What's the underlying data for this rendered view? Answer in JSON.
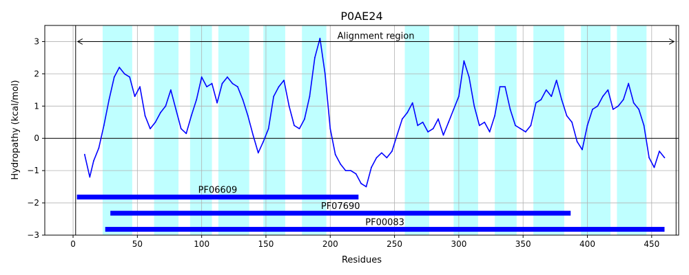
{
  "chart_data": {
    "type": "line",
    "title": "P0AE24",
    "xlabel": "Residues",
    "ylabel": "Hydropathy (kcal/mol)",
    "xlim": [
      -22,
      471
    ],
    "ylim": [
      -3,
      3.5
    ],
    "xticks": [
      0,
      50,
      100,
      150,
      200,
      250,
      300,
      350,
      400,
      450
    ],
    "yticks": [
      -3,
      -2,
      -1,
      0,
      1,
      2,
      3
    ],
    "grid": true,
    "colors": {
      "line": "#0000ff",
      "tm_band": "#00ffff",
      "domain_bar": "#0000ff",
      "grid": "#b0b0b0"
    },
    "tm_segments": [
      [
        23,
        46
      ],
      [
        63,
        82
      ],
      [
        91,
        108
      ],
      [
        113,
        137
      ],
      [
        148,
        165
      ],
      [
        178,
        197
      ],
      [
        258,
        277
      ],
      [
        296,
        315
      ],
      [
        328,
        345
      ],
      [
        358,
        382
      ],
      [
        395,
        418
      ],
      [
        423,
        446
      ]
    ],
    "alignment_region": {
      "label": "Alignment region",
      "start": 2,
      "end": 469,
      "y": 3.0
    },
    "domains": [
      {
        "name": "PF06609",
        "start": 3,
        "end": 222,
        "y": -1.82
      },
      {
        "name": "PF07690",
        "start": 29,
        "end": 387,
        "y": -2.32
      },
      {
        "name": "PF00083",
        "start": 25,
        "end": 460,
        "y": -2.82
      }
    ],
    "series": [
      {
        "name": "Hydropathy",
        "x": [
          9,
          13,
          16,
          20,
          24,
          28,
          32,
          36,
          40,
          44,
          48,
          52,
          56,
          60,
          64,
          68,
          72,
          76,
          80,
          84,
          88,
          92,
          96,
          100,
          104,
          108,
          112,
          116,
          120,
          124,
          128,
          132,
          136,
          140,
          144,
          148,
          152,
          156,
          160,
          164,
          168,
          172,
          176,
          180,
          184,
          188,
          192,
          196,
          200,
          204,
          208,
          212,
          216,
          220,
          224,
          228,
          232,
          236,
          240,
          244,
          248,
          252,
          256,
          260,
          264,
          268,
          272,
          276,
          280,
          284,
          288,
          292,
          296,
          300,
          304,
          308,
          312,
          316,
          320,
          324,
          328,
          332,
          336,
          340,
          344,
          348,
          352,
          356,
          360,
          364,
          368,
          372,
          376,
          380,
          384,
          388,
          392,
          396,
          400,
          404,
          408,
          412,
          416,
          420,
          424,
          428,
          432,
          436,
          440,
          444,
          448,
          452,
          456,
          460
        ],
        "values": [
          -0.5,
          -1.2,
          -0.7,
          -0.3,
          0.4,
          1.2,
          1.9,
          2.2,
          2.0,
          1.9,
          1.3,
          1.6,
          0.7,
          0.3,
          0.5,
          0.8,
          1.0,
          1.5,
          0.9,
          0.3,
          0.15,
          0.7,
          1.2,
          1.9,
          1.6,
          1.7,
          1.1,
          1.7,
          1.9,
          1.7,
          1.6,
          1.2,
          0.7,
          0.1,
          -0.45,
          -0.1,
          0.3,
          1.3,
          1.6,
          1.8,
          1.0,
          0.4,
          0.3,
          0.6,
          1.3,
          2.5,
          3.1,
          2.0,
          0.3,
          -0.5,
          -0.8,
          -1.0,
          -1.0,
          -1.1,
          -1.4,
          -1.5,
          -0.9,
          -0.6,
          -0.45,
          -0.6,
          -0.4,
          0.1,
          0.6,
          0.8,
          1.1,
          0.4,
          0.5,
          0.2,
          0.3,
          0.6,
          0.1,
          0.5,
          0.9,
          1.3,
          2.4,
          1.9,
          1.0,
          0.4,
          0.5,
          0.2,
          0.7,
          1.6,
          1.6,
          0.9,
          0.4,
          0.3,
          0.2,
          0.4,
          1.1,
          1.2,
          1.5,
          1.3,
          1.8,
          1.2,
          0.7,
          0.5,
          -0.1,
          -0.35,
          0.4,
          0.9,
          1.0,
          1.3,
          1.5,
          0.9,
          1.0,
          1.2,
          1.7,
          1.1,
          0.9,
          0.4,
          -0.6,
          -0.9,
          -0.4,
          -0.6
        ]
      }
    ]
  }
}
